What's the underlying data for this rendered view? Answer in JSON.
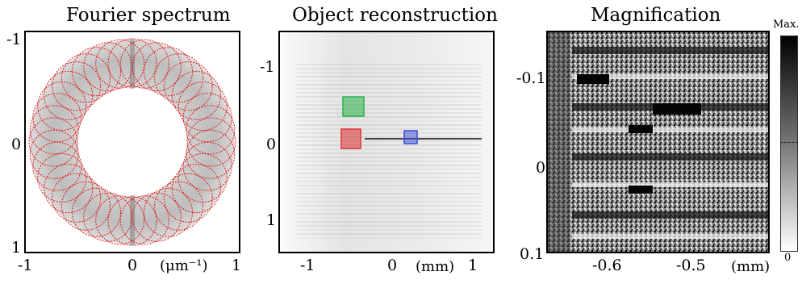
{
  "panels": [
    {
      "title": "Fourier spectrum",
      "x_ticks": [
        "-1",
        "0",
        "1"
      ],
      "y_ticks": [
        "-1",
        "0",
        "1"
      ],
      "unit": "(μm⁻¹)"
    },
    {
      "title": "Object reconstruction",
      "x_ticks": [
        "-1",
        "0",
        "1"
      ],
      "y_ticks": [
        "-1",
        "0",
        "1"
      ],
      "unit": "(mm)",
      "boxes": [
        {
          "name": "green",
          "color": "#2bb24c"
        },
        {
          "name": "red",
          "color": "#e03030"
        },
        {
          "name": "blue",
          "color": "#3a4bd8"
        }
      ]
    },
    {
      "title": "Magnification",
      "x_ticks": [
        "-0.6",
        "-0.5"
      ],
      "y_ticks": [
        "-0.1",
        "0",
        "0.1"
      ],
      "unit": "(mm)",
      "colorbar": {
        "max_label": "Max.",
        "min_label": "0"
      }
    }
  ],
  "colors": {
    "trace": "#e02020",
    "frame": "#000000"
  }
}
